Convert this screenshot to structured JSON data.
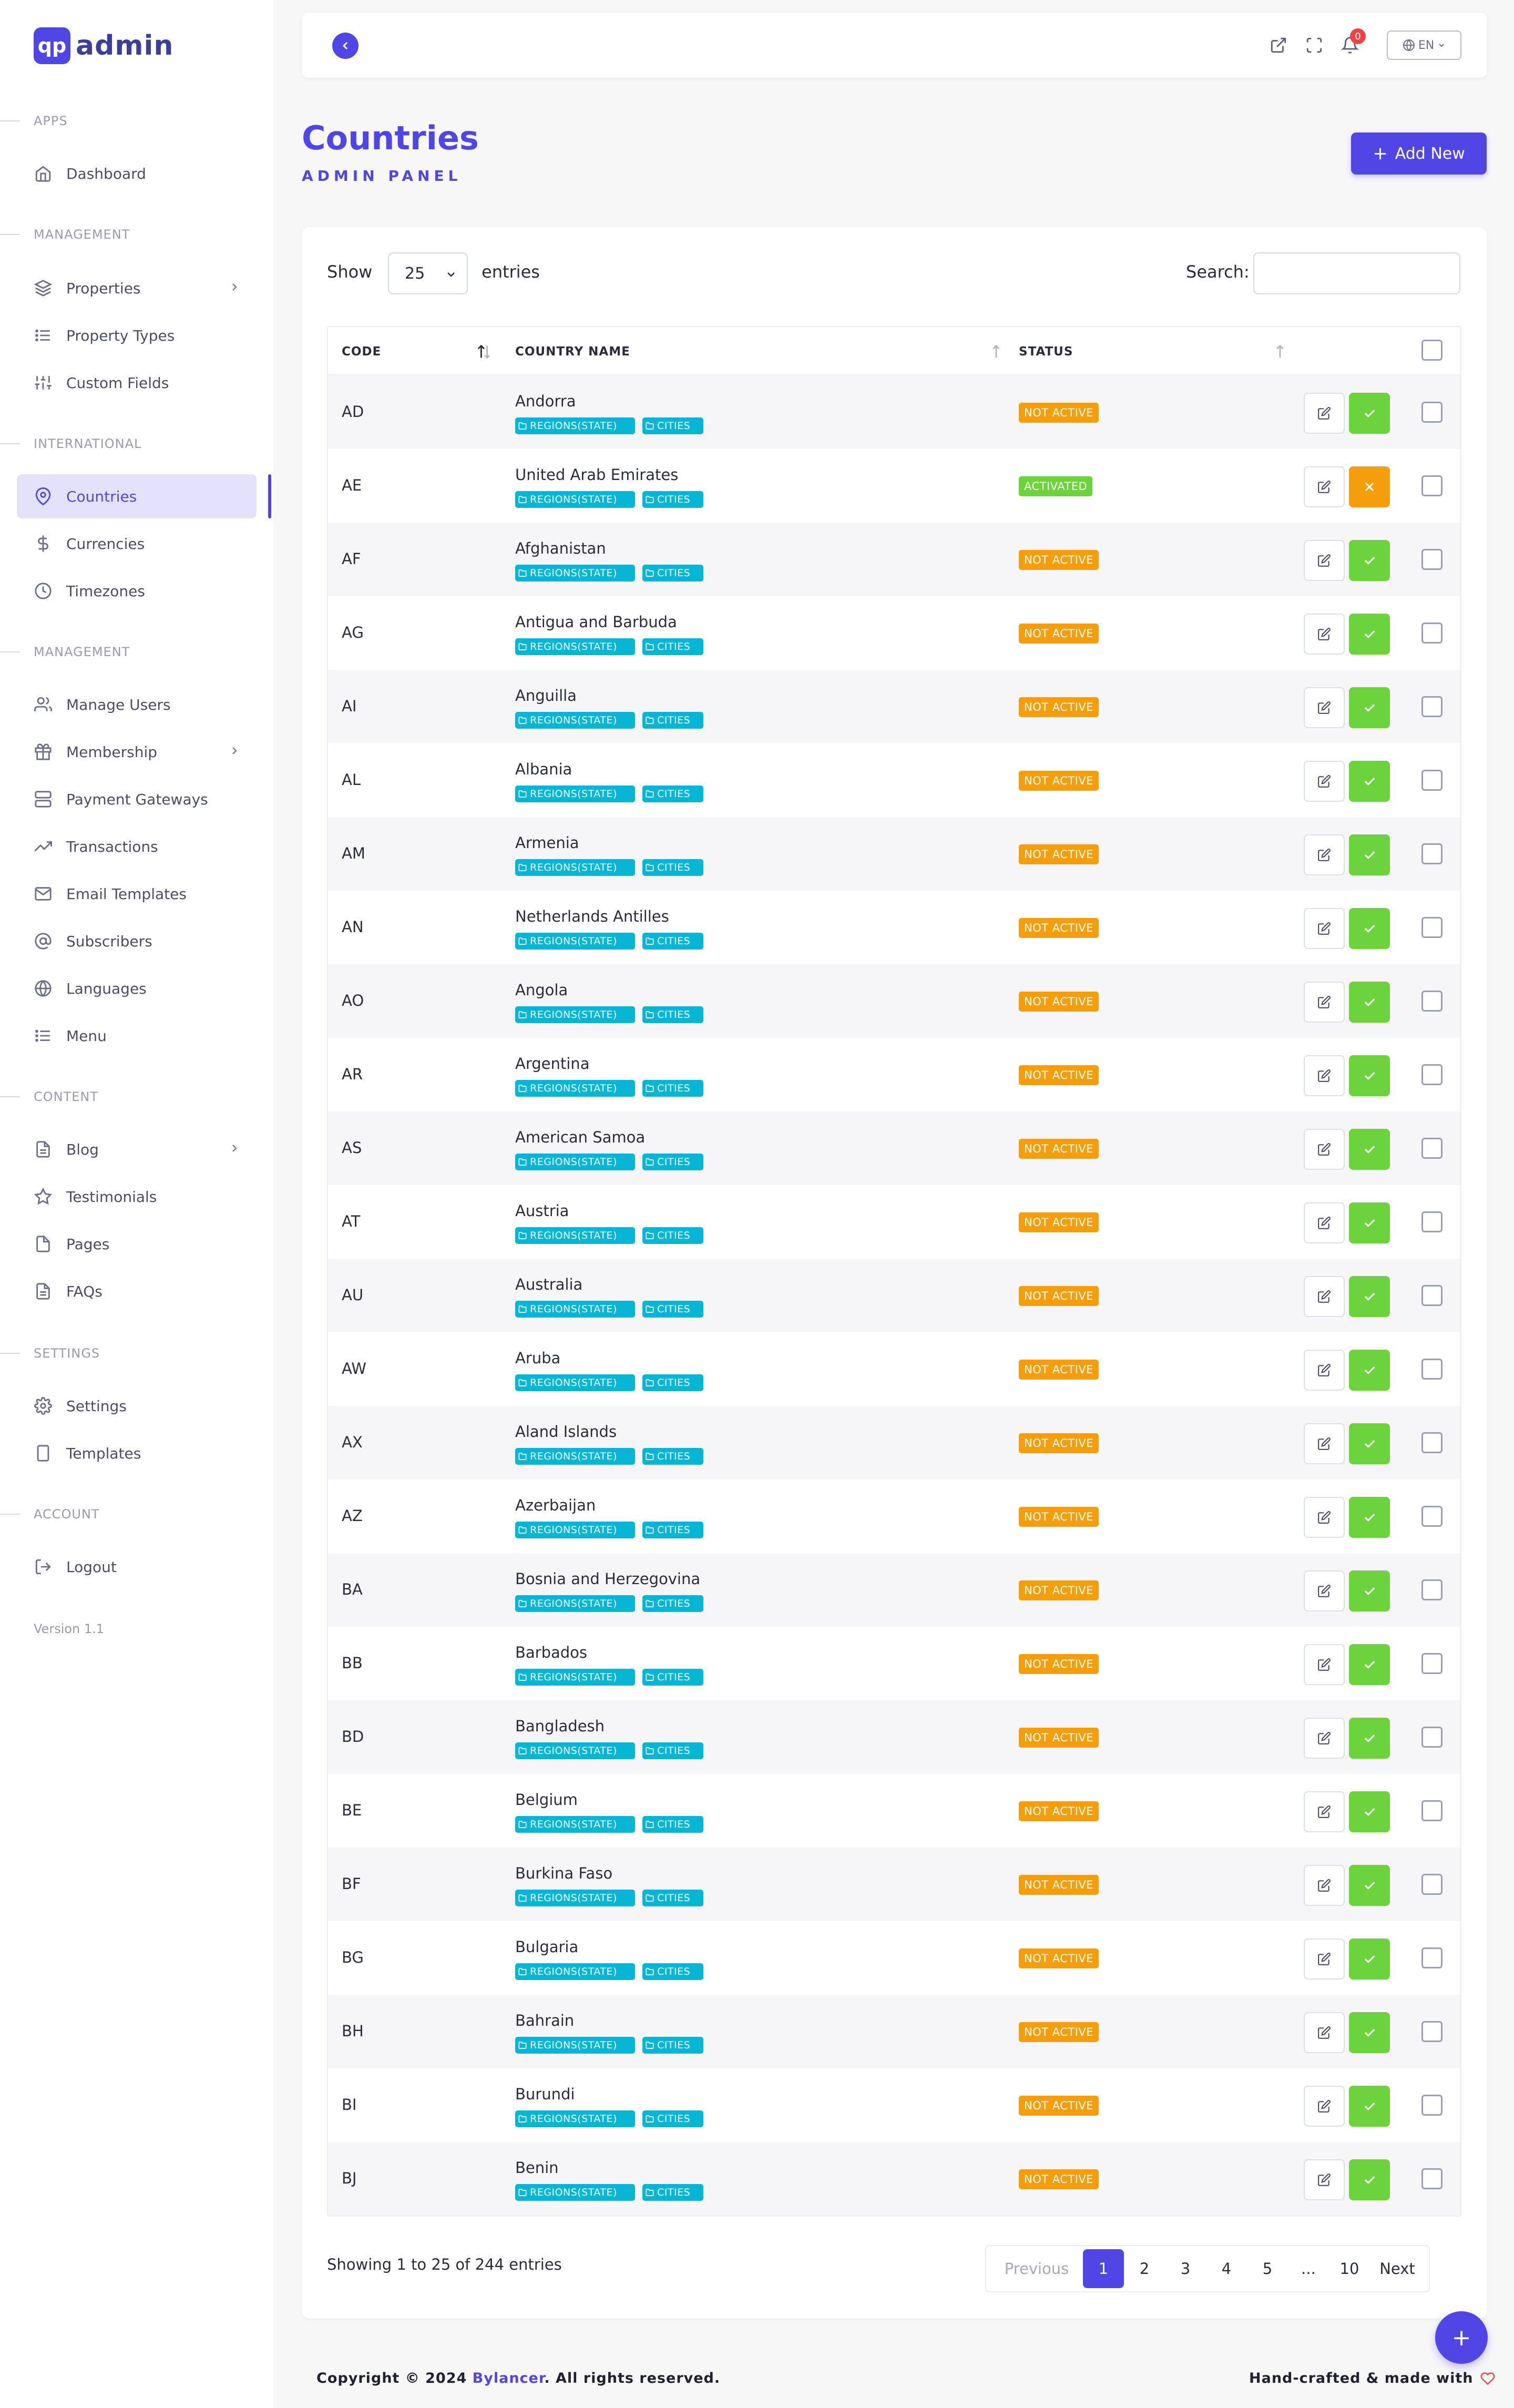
{
  "brand": {
    "logo_text": "qp",
    "name": "admin"
  },
  "sidebar": {
    "sections": {
      "apps": "APPS",
      "management": "MANAGEMENT",
      "international": "INTERNATIONAL",
      "management2": "MANAGEMENT",
      "content": "CONTENT",
      "settings": "SETTINGS",
      "account": "ACCOUNT"
    },
    "items": {
      "dashboard": "Dashboard",
      "properties": "Properties",
      "property_types": "Property Types",
      "custom_fields": "Custom Fields",
      "countries": "Countries",
      "currencies": "Currencies",
      "timezones": "Timezones",
      "manage_users": "Manage Users",
      "membership": "Membership",
      "payment_gateways": "Payment Gateways",
      "transactions": "Transactions",
      "email_templates": "Email Templates",
      "subscribers": "Subscribers",
      "languages": "Languages",
      "menu": "Menu",
      "blog": "Blog",
      "testimonials": "Testimonials",
      "pages": "Pages",
      "faqs": "FAQs",
      "settings": "Settings",
      "templates": "Templates",
      "logout": "Logout"
    },
    "version": "Version 1.1"
  },
  "topbar": {
    "notification_count": "0",
    "language": "EN"
  },
  "header": {
    "title": "Countries",
    "subtitle": "ADMIN PANEL",
    "add_button": "Add New"
  },
  "table_controls": {
    "show_label": "Show",
    "page_size": "25",
    "entries_label": "entries",
    "search_label": "Search:",
    "search_value": ""
  },
  "table": {
    "columns": {
      "code": "CODE",
      "name": "COUNTRY NAME",
      "status": "STATUS"
    },
    "chip_regions": "REGIONS(STATE)",
    "chip_cities": "CITIES",
    "rows": [
      {
        "code": "AD",
        "name": "Andorra",
        "status": "NOT ACTIVE",
        "active": false
      },
      {
        "code": "AE",
        "name": "United Arab Emirates",
        "status": "ACTIVATED",
        "active": true
      },
      {
        "code": "AF",
        "name": "Afghanistan",
        "status": "NOT ACTIVE",
        "active": false
      },
      {
        "code": "AG",
        "name": "Antigua and Barbuda",
        "status": "NOT ACTIVE",
        "active": false
      },
      {
        "code": "AI",
        "name": "Anguilla",
        "status": "NOT ACTIVE",
        "active": false
      },
      {
        "code": "AL",
        "name": "Albania",
        "status": "NOT ACTIVE",
        "active": false
      },
      {
        "code": "AM",
        "name": "Armenia",
        "status": "NOT ACTIVE",
        "active": false
      },
      {
        "code": "AN",
        "name": "Netherlands Antilles",
        "status": "NOT ACTIVE",
        "active": false
      },
      {
        "code": "AO",
        "name": "Angola",
        "status": "NOT ACTIVE",
        "active": false
      },
      {
        "code": "AR",
        "name": "Argentina",
        "status": "NOT ACTIVE",
        "active": false
      },
      {
        "code": "AS",
        "name": "American Samoa",
        "status": "NOT ACTIVE",
        "active": false
      },
      {
        "code": "AT",
        "name": "Austria",
        "status": "NOT ACTIVE",
        "active": false
      },
      {
        "code": "AU",
        "name": "Australia",
        "status": "NOT ACTIVE",
        "active": false
      },
      {
        "code": "AW",
        "name": "Aruba",
        "status": "NOT ACTIVE",
        "active": false
      },
      {
        "code": "AX",
        "name": "Aland Islands",
        "status": "NOT ACTIVE",
        "active": false
      },
      {
        "code": "AZ",
        "name": "Azerbaijan",
        "status": "NOT ACTIVE",
        "active": false
      },
      {
        "code": "BA",
        "name": "Bosnia and Herzegovina",
        "status": "NOT ACTIVE",
        "active": false
      },
      {
        "code": "BB",
        "name": "Barbados",
        "status": "NOT ACTIVE",
        "active": false
      },
      {
        "code": "BD",
        "name": "Bangladesh",
        "status": "NOT ACTIVE",
        "active": false
      },
      {
        "code": "BE",
        "name": "Belgium",
        "status": "NOT ACTIVE",
        "active": false
      },
      {
        "code": "BF",
        "name": "Burkina Faso",
        "status": "NOT ACTIVE",
        "active": false
      },
      {
        "code": "BG",
        "name": "Bulgaria",
        "status": "NOT ACTIVE",
        "active": false
      },
      {
        "code": "BH",
        "name": "Bahrain",
        "status": "NOT ACTIVE",
        "active": false
      },
      {
        "code": "BI",
        "name": "Burundi",
        "status": "NOT ACTIVE",
        "active": false
      },
      {
        "code": "BJ",
        "name": "Benin",
        "status": "NOT ACTIVE",
        "active": false
      }
    ]
  },
  "footer_info": {
    "showing": "Showing 1 to 25 of 244 entries"
  },
  "pagination": {
    "previous": "Previous",
    "pages": [
      "1",
      "2",
      "3",
      "4",
      "5",
      "...",
      "10"
    ],
    "current": "1",
    "next": "Next"
  },
  "footer": {
    "copyright_prefix": "Copyright © 2024",
    "company": "Bylancer",
    "copyright_suffix": ". All rights reserved.",
    "made_with": "Hand-crafted & made with"
  },
  "colors": {
    "accent": "#4f46e5",
    "not_active": "#f59e0b",
    "activated": "#6cd33d",
    "chip": "#06b6d4"
  }
}
